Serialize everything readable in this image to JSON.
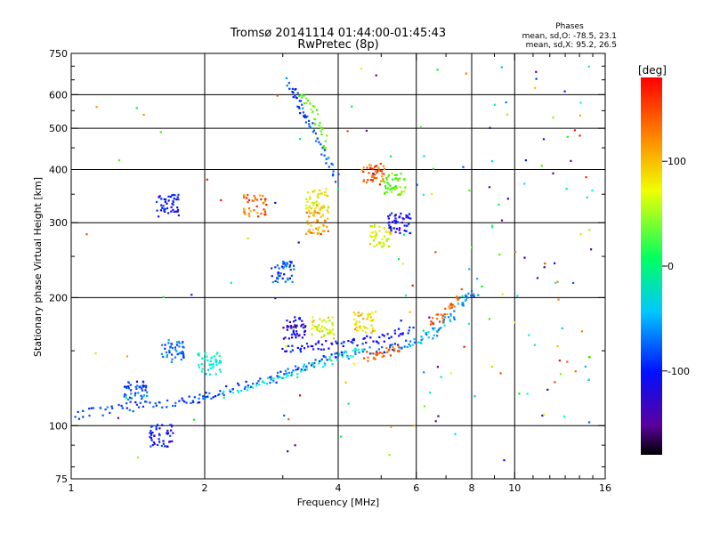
{
  "chart_data": {
    "type": "scatter",
    "title": "Tromsø 20141114 01:44:00-01:45:43",
    "subtitle": "RwPretec (8p)",
    "xlabel": "Frequency [MHz]",
    "ylabel": "Stationary phase Virtual Height [km]",
    "x_scale": "log",
    "y_scale": "log",
    "xlim": [
      1,
      16
    ],
    "ylim": [
      75,
      750
    ],
    "x_ticks": [
      1,
      2,
      4,
      6,
      8,
      10,
      16
    ],
    "y_ticks": [
      75,
      100,
      200,
      300,
      400,
      500,
      600,
      750
    ],
    "grid": true,
    "stats": {
      "heading": "Phases",
      "line_o": "mean, sd,O: -78.5, 23.1",
      "line_x": "mean, sd,X:  95.2, 26.5"
    },
    "colorbar": {
      "label": "[deg]",
      "range": [
        -180,
        180
      ],
      "ticks": [
        100,
        0,
        -100
      ]
    },
    "traces": [
      {
        "x": [
          1.0,
          1.15,
          1.3,
          1.5,
          1.7,
          1.9,
          2.0,
          2.2,
          2.5,
          2.8,
          3.0,
          3.2,
          3.5,
          3.8,
          4.2,
          4.8,
          5.3,
          5.8
        ],
        "y": [
          105,
          108,
          110,
          112,
          113,
          115,
          116,
          120,
          125,
          128,
          132,
          136,
          140,
          144,
          147,
          150,
          153,
          157
        ],
        "phase": -100
      },
      {
        "x": [
          2.2,
          2.6,
          3.0,
          3.4,
          3.8,
          4.2,
          4.6
        ],
        "y": [
          118,
          124,
          130,
          136,
          142,
          147,
          151
        ],
        "phase": -40
      },
      {
        "x": [
          3.0,
          3.3,
          3.6,
          4.0,
          4.4,
          4.9,
          5.4,
          5.9
        ],
        "y": [
          150,
          152,
          154,
          156,
          158,
          160,
          165,
          170
        ],
        "phase": -120
      },
      {
        "x": [
          4.6,
          4.9,
          5.2,
          5.5
        ],
        "y": [
          145,
          147,
          149,
          152
        ],
        "phase": 150
      },
      {
        "x": [
          5.8,
          6.2,
          6.6,
          7.0,
          7.4
        ],
        "y": [
          157,
          160,
          166,
          175,
          185
        ],
        "phase": -70
      },
      {
        "x": [
          6.4,
          6.8,
          7.2,
          7.5
        ],
        "y": [
          175,
          180,
          190,
          200
        ],
        "phase": 150
      },
      {
        "x": [
          7.5,
          7.8,
          8.2
        ],
        "y": [
          195,
          200,
          205
        ],
        "phase": -80
      },
      {
        "x": [
          3.1,
          3.2,
          3.3,
          3.4,
          3.6,
          3.8,
          4.0
        ],
        "y": [
          640,
          600,
          560,
          520,
          470,
          420,
          380
        ],
        "phase": -100
      },
      {
        "x": [
          3.3,
          3.5,
          3.6,
          3.8
        ],
        "y": [
          600,
          560,
          500,
          450
        ],
        "phase": 60
      }
    ],
    "clusters": [
      {
        "x": 1.65,
        "y": 330,
        "phase": -120
      },
      {
        "x": 2.6,
        "y": 330,
        "phase": 150
      },
      {
        "x": 3.6,
        "y": 340,
        "phase": 100
      },
      {
        "x": 3.6,
        "y": 300,
        "phase": 130
      },
      {
        "x": 4.8,
        "y": 390,
        "phase": 150
      },
      {
        "x": 5.4,
        "y": 370,
        "phase": 60
      },
      {
        "x": 5.0,
        "y": 280,
        "phase": 100
      },
      {
        "x": 5.5,
        "y": 300,
        "phase": -120
      },
      {
        "x": 4.6,
        "y": 175,
        "phase": 110
      },
      {
        "x": 3.7,
        "y": 170,
        "phase": 100
      },
      {
        "x": 3.2,
        "y": 170,
        "phase": -130
      },
      {
        "x": 1.7,
        "y": 150,
        "phase": -90
      },
      {
        "x": 2.05,
        "y": 140,
        "phase": -40
      },
      {
        "x": 1.4,
        "y": 120,
        "phase": -100
      },
      {
        "x": 3.0,
        "y": 230,
        "phase": -100
      },
      {
        "x": 1.6,
        "y": 95,
        "phase": -120
      }
    ]
  }
}
